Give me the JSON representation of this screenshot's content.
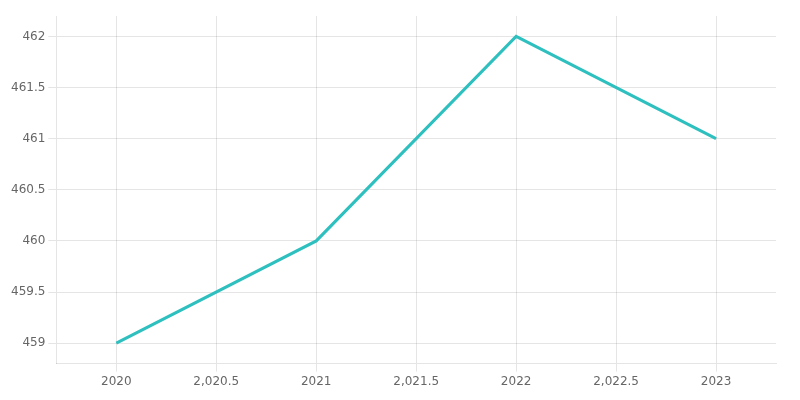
{
  "chart_data": {
    "type": "line",
    "x": [
      2020,
      2021,
      2022,
      2023
    ],
    "values": [
      459,
      460,
      462,
      461
    ],
    "color": "#2ebfbf",
    "xlim": [
      2019.7,
      2023.3
    ],
    "ylim": [
      458.8,
      462.2
    ],
    "xticks": [
      2020,
      {
        "value": 2020.5,
        "label": "2,020.5"
      },
      2021,
      {
        "value": 2021.5,
        "label": "2,021.5"
      },
      2022,
      {
        "value": 2022.5,
        "label": "2,022.5"
      },
      2023
    ],
    "yticks": [
      459,
      459.5,
      460,
      460.5,
      461,
      461.5,
      462
    ],
    "grid": true
  }
}
